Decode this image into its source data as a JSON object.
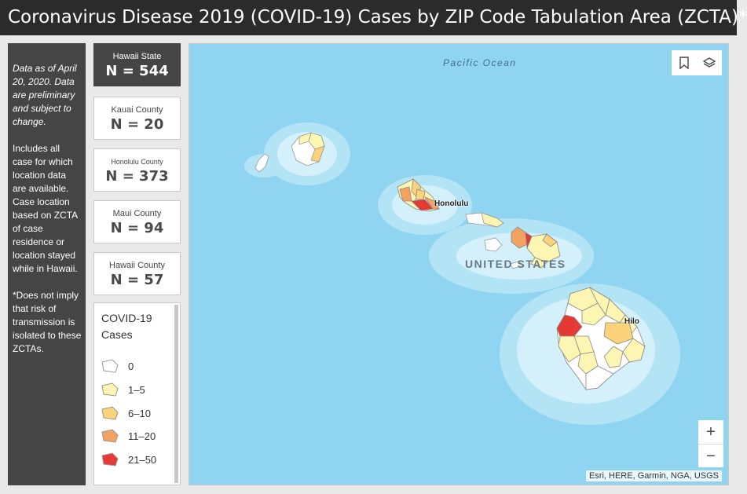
{
  "header": {
    "title": "Coronavirus Disease 2019 (COVID-19) Cases by ZIP Code Tabulation Area (ZCTA)*"
  },
  "notes": {
    "data_as_of": "Data as of April 20, 2020. Data are preliminary and subject to change.",
    "includes": "Includes all case for which location data are available. Case location based on ZCTA of case residence or location stayed while in Hawaii.",
    "disclaimer": "*Does not imply that risk of transmission is isolated to these ZCTAs."
  },
  "stats": [
    {
      "label": "Hawaii State",
      "value": "N = 544"
    },
    {
      "label": "Kauai County",
      "value": "N = 20"
    },
    {
      "label": "Honolulu County",
      "value": "N = 373"
    },
    {
      "label": "Maui County",
      "value": "N = 94"
    },
    {
      "label": "Hawaii County",
      "value": "N = 57"
    }
  ],
  "legend": {
    "title": "COVID-19 Cases",
    "items": [
      {
        "label": "0",
        "color": "#ffffff"
      },
      {
        "label": "1–5",
        "color": "#fdf6b2"
      },
      {
        "label": "6–10",
        "color": "#fcd27b"
      },
      {
        "label": "11–20",
        "color": "#f4a261"
      },
      {
        "label": "21–50",
        "color": "#e53935"
      }
    ]
  },
  "map": {
    "ocean_label": "Pacific Ocean",
    "country_label": "UNITED STATES",
    "cities": [
      "Honolulu",
      "Hilo"
    ],
    "zoom_in": "+",
    "zoom_out": "−",
    "tools": [
      "bookmark-icon",
      "layers-icon"
    ],
    "attribution": "Esri, HERE, Garmin, NGA, USGS"
  }
}
